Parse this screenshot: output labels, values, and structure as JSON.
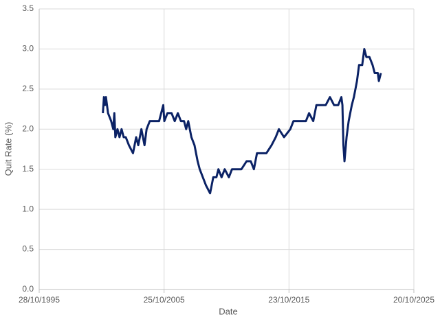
{
  "chart_data": {
    "type": "line",
    "x_label": "Date",
    "y_label": "Quit Rate (%)",
    "xlim": [
      "1995-10-28",
      "2025-10-20"
    ],
    "xticks": [
      {
        "value": "1995-10-28",
        "label": "28/10/1995"
      },
      {
        "value": "2005-10-25",
        "label": "25/10/2005"
      },
      {
        "value": "2015-10-23",
        "label": "23/10/2015"
      },
      {
        "value": "2025-10-20",
        "label": "20/10/2025"
      }
    ],
    "ylim": [
      0,
      3.5
    ],
    "yticks": [
      {
        "value": 0,
        "label": "0.0"
      },
      {
        "value": 0.5,
        "label": "0.5"
      },
      {
        "value": 1,
        "label": "1.0"
      },
      {
        "value": 1.5,
        "label": "1.5"
      },
      {
        "value": 2,
        "label": "2.0"
      },
      {
        "value": 2.5,
        "label": "2.5"
      },
      {
        "value": 3,
        "label": "3.0"
      },
      {
        "value": 3.5,
        "label": "3.5"
      }
    ],
    "grid": true,
    "series": [
      {
        "color": "#0b2265",
        "x": [
          "2000-12-01",
          "2001-01-01",
          "2001-02-01",
          "2001-03-01",
          "2001-05-01",
          "2001-08-01",
          "2001-10-01",
          "2001-11-01",
          "2001-12-01",
          "2002-02-01",
          "2002-04-01",
          "2002-06-01",
          "2002-08-01",
          "2002-10-01",
          "2003-01-01",
          "2003-05-01",
          "2003-08-01",
          "2003-10-01",
          "2004-01-01",
          "2004-04-01",
          "2004-06-01",
          "2004-09-01",
          "2005-02-01",
          "2005-06-01",
          "2005-10-01",
          "2005-11-01",
          "2006-02-01",
          "2006-06-01",
          "2006-09-01",
          "2006-12-01",
          "2007-03-01",
          "2007-06-01",
          "2007-08-01",
          "2007-10-01",
          "2008-01-01",
          "2008-04-01",
          "2008-07-01",
          "2008-09-01",
          "2008-12-01",
          "2009-03-01",
          "2009-07-01",
          "2009-10-01",
          "2010-01-01",
          "2010-03-01",
          "2010-06-01",
          "2010-09-01",
          "2011-01-01",
          "2011-04-01",
          "2012-01-01",
          "2012-06-01",
          "2012-10-01",
          "2013-01-01",
          "2013-04-01",
          "2013-08-01",
          "2014-01-01",
          "2014-06-01",
          "2014-10-01",
          "2015-01-01",
          "2015-06-01",
          "2015-12-01",
          "2016-03-01",
          "2016-09-01",
          "2017-03-01",
          "2017-06-01",
          "2017-10-01",
          "2018-01-01",
          "2018-06-01",
          "2018-10-01",
          "2019-02-01",
          "2019-06-01",
          "2019-10-01",
          "2020-01-01",
          "2020-02-01",
          "2020-03-01",
          "2020-04-01",
          "2020-06-01",
          "2020-08-01",
          "2020-11-01",
          "2021-01-01",
          "2021-04-01",
          "2021-06-01",
          "2021-09-01",
          "2021-11-01",
          "2022-01-01",
          "2022-04-01",
          "2022-07-01",
          "2022-09-01",
          "2022-12-01",
          "2023-01-01",
          "2023-03-01"
        ],
        "values": [
          2.2,
          2.4,
          2.3,
          2.4,
          2.2,
          2.1,
          2.0,
          2.2,
          1.9,
          2.0,
          1.9,
          2.0,
          1.9,
          1.9,
          1.8,
          1.7,
          1.9,
          1.8,
          2.0,
          1.8,
          2.0,
          2.1,
          2.1,
          2.1,
          2.3,
          2.1,
          2.2,
          2.2,
          2.1,
          2.2,
          2.1,
          2.1,
          2.0,
          2.1,
          1.9,
          1.8,
          1.6,
          1.5,
          1.4,
          1.3,
          1.2,
          1.4,
          1.4,
          1.5,
          1.4,
          1.5,
          1.4,
          1.5,
          1.5,
          1.6,
          1.6,
          1.5,
          1.7,
          1.7,
          1.7,
          1.8,
          1.9,
          2.0,
          1.9,
          2.0,
          2.1,
          2.1,
          2.1,
          2.2,
          2.1,
          2.3,
          2.3,
          2.3,
          2.4,
          2.3,
          2.3,
          2.4,
          2.3,
          1.8,
          1.6,
          1.9,
          2.1,
          2.3,
          2.4,
          2.6,
          2.8,
          2.8,
          3.0,
          2.9,
          2.9,
          2.8,
          2.7,
          2.7,
          2.6,
          2.7
        ]
      }
    ]
  }
}
